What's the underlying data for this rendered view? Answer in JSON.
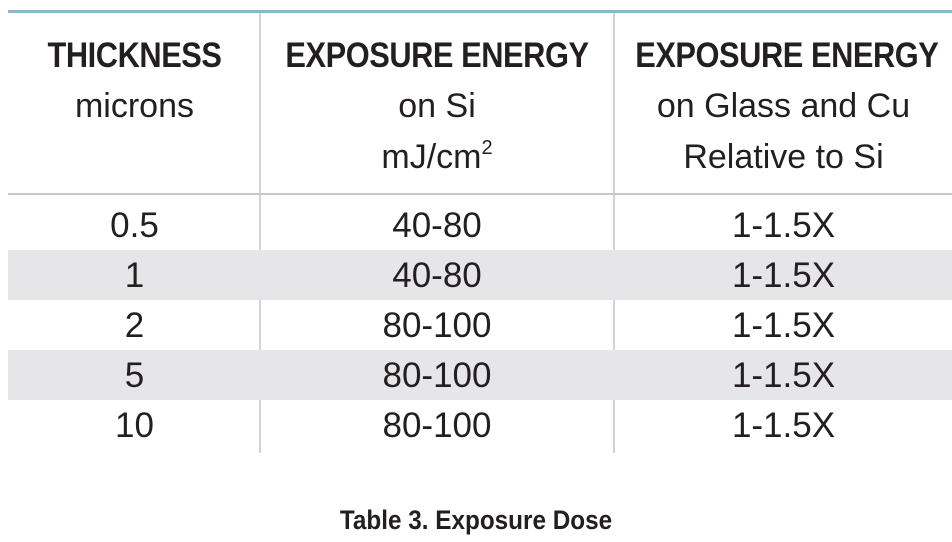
{
  "table": {
    "headers": [
      {
        "title": "THICKNESS",
        "sub": [
          "microns"
        ]
      },
      {
        "title": "EXPOSURE ENERGY",
        "sub": [
          "on Si",
          "mJ/cm",
          "2"
        ]
      },
      {
        "title": "EXPOSURE ENERGY",
        "sub": [
          "on Glass and Cu",
          "Relative to Si"
        ]
      }
    ],
    "rows": [
      [
        "0.5",
        "40-80",
        "1-1.5X"
      ],
      [
        "1",
        "40-80",
        "1-1.5X"
      ],
      [
        "2",
        "80-100",
        "1-1.5X"
      ],
      [
        "5",
        "80-100",
        "1-1.5X"
      ],
      [
        "10",
        "80-100",
        "1-1.5X"
      ]
    ],
    "shaded_rows": [
      1,
      3
    ]
  },
  "caption": "Table 3. Exposure Dose",
  "colors": {
    "top_rule": "#8ab8cc",
    "row_shade": "#e6e6e8",
    "text": "#231f20"
  }
}
